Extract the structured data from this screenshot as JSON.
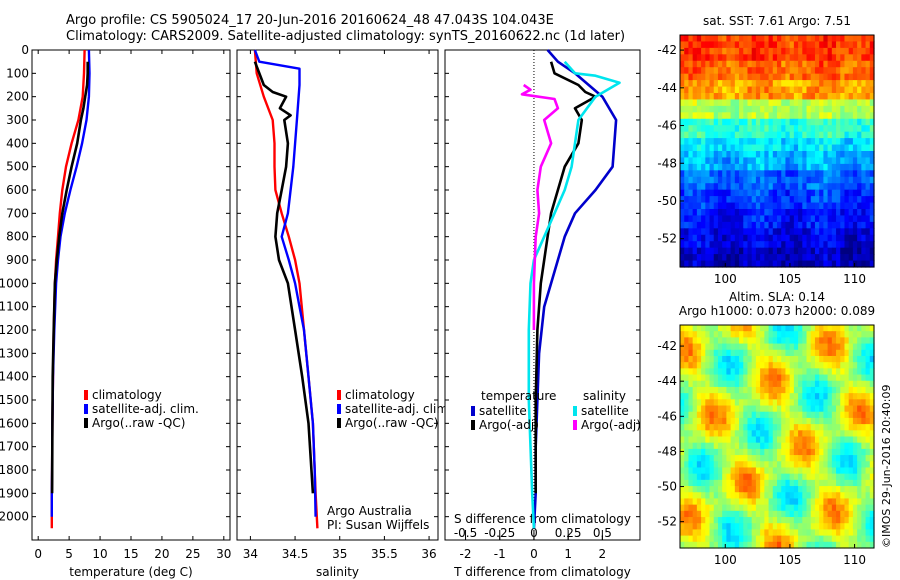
{
  "header": {
    "line1": "Argo profile: CS 5905024_17 20-Jun-2016 20160624_48 47.043S 104.043E",
    "line2": "Climatology: CARS2009. Satellite-adjusted climatology: synTS_20160622.nc (1d later)"
  },
  "side_stamp": "©IMOS 29-Jun-2016 20:40:09",
  "chart_data": [
    {
      "id": "temperature",
      "type": "line",
      "xlabel": "temperature (deg C)",
      "ylabel": "",
      "xlim": [
        -1,
        31
      ],
      "ylim": [
        2100,
        0
      ],
      "xticks": [
        0,
        5,
        10,
        15,
        20,
        25,
        30
      ],
      "yticks": [
        0,
        100,
        200,
        300,
        400,
        500,
        600,
        700,
        800,
        900,
        1000,
        1100,
        1200,
        1300,
        1400,
        1500,
        1600,
        1700,
        1800,
        1900,
        2000
      ],
      "legend": [
        "climatology",
        "satellite-adj. clim.",
        "Argo(..raw -QC)"
      ],
      "series": [
        {
          "name": "climatology",
          "color": "#ff0000",
          "x": [
            7.5,
            7.4,
            7.2,
            6.5,
            5.4,
            4.5,
            3.9,
            3.5,
            3.2,
            2.9,
            2.7,
            2.5,
            2.4,
            2.3,
            2.25,
            2.2,
            2.2,
            2.2
          ],
          "y": [
            0,
            100,
            200,
            300,
            400,
            500,
            600,
            700,
            800,
            900,
            1000,
            1200,
            1400,
            1600,
            1800,
            1900,
            2000,
            2050
          ]
        },
        {
          "name": "satellite-adj. clim.",
          "color": "#0000ff",
          "x": [
            8.2,
            8.3,
            8.2,
            7.8,
            7.1,
            6.2,
            5.2,
            4.3,
            3.6,
            3.2,
            2.9,
            2.6,
            2.4,
            2.3,
            2.25,
            2.2,
            2.2
          ],
          "y": [
            0,
            100,
            200,
            300,
            400,
            500,
            600,
            700,
            800,
            900,
            1000,
            1200,
            1400,
            1600,
            1800,
            1900,
            2000
          ]
        },
        {
          "name": "Argo(..raw -QC)",
          "color": "#000000",
          "x": [
            8.0,
            8.0,
            7.9,
            7.6,
            7.3,
            6.9,
            6.3,
            5.4,
            4.6,
            3.9,
            3.4,
            3.0,
            2.7,
            2.5,
            2.35,
            2.3,
            2.25
          ],
          "y": [
            50,
            100,
            150,
            200,
            250,
            300,
            400,
            500,
            600,
            700,
            800,
            900,
            1000,
            1200,
            1400,
            1600,
            1900
          ]
        }
      ]
    },
    {
      "id": "salinity",
      "type": "line",
      "xlabel": "salinity",
      "ylabel": "",
      "xlim": [
        33.85,
        36.1
      ],
      "ylim": [
        2100,
        0
      ],
      "xticks": [
        34,
        34.5,
        35,
        35.5,
        36
      ],
      "legend": [
        "climatology",
        "satellite-adj. clim.",
        "Argo(..raw -QC)"
      ],
      "annotation": [
        "Argo Australia",
        "PI: Susan Wijffels"
      ],
      "series": [
        {
          "name": "climatology",
          "color": "#ff0000",
          "x": [
            34.05,
            34.07,
            34.15,
            34.25,
            34.27,
            34.27,
            34.28,
            34.35,
            34.43,
            34.5,
            34.55,
            34.6,
            34.65,
            34.7,
            34.72,
            34.73,
            34.75
          ],
          "y": [
            0,
            100,
            200,
            300,
            400,
            500,
            600,
            700,
            800,
            900,
            1000,
            1200,
            1400,
            1600,
            1800,
            1900,
            2050
          ]
        },
        {
          "name": "satellite-adj. clim.",
          "color": "#0000ff",
          "x": [
            34.05,
            34.1,
            34.55,
            34.55,
            34.52,
            34.48,
            34.42,
            34.35,
            34.43,
            34.5,
            34.55,
            34.6,
            34.65,
            34.7,
            34.72,
            34.73
          ],
          "y": [
            0,
            50,
            80,
            150,
            300,
            500,
            700,
            800,
            900,
            1000,
            1100,
            1200,
            1400,
            1600,
            1800,
            2000
          ]
        },
        {
          "name": "Argo(..raw -QC)",
          "color": "#000000",
          "x": [
            34.05,
            34.15,
            34.25,
            34.4,
            34.33,
            34.45,
            34.38,
            34.42,
            34.4,
            34.35,
            34.3,
            34.28,
            34.32,
            34.42,
            34.5,
            34.58,
            34.65,
            34.7
          ],
          "y": [
            50,
            150,
            180,
            200,
            250,
            280,
            300,
            400,
            500,
            600,
            700,
            800,
            900,
            1000,
            1200,
            1400,
            1600,
            1900
          ]
        }
      ]
    },
    {
      "id": "difference",
      "type": "line",
      "xlabel": "T difference from climatology",
      "x2label": "S difference from climatology",
      "ylabel": "",
      "xlim": [
        -2.6,
        3.1
      ],
      "ylim": [
        2100,
        0
      ],
      "xticks": [
        -2,
        -1,
        0,
        1,
        2
      ],
      "x2ticks": [
        -0.5,
        -0.25,
        0,
        0.25,
        0.5
      ],
      "legend_temperature": {
        "title": "temperature",
        "items": [
          "satellite",
          "Argo(-adj)"
        ]
      },
      "legend_salinity": {
        "title": "salinity",
        "items": [
          "satellite",
          "Argo(-adj)"
        ]
      },
      "series": [
        {
          "name": "temperature satellite",
          "color": "#0000cc",
          "x": [
            0.4,
            0.7,
            1.2,
            1.6,
            2.0,
            2.4,
            2.3,
            1.8,
            1.2,
            0.9,
            0.7,
            0.5,
            0.3,
            0.15,
            0.1,
            0.05,
            0.05,
            0.0
          ],
          "y": [
            0,
            50,
            100,
            150,
            200,
            300,
            500,
            600,
            700,
            800,
            900,
            1000,
            1100,
            1300,
            1500,
            1700,
            1900,
            2050
          ]
        },
        {
          "name": "temperature Argo(-adj)",
          "color": "#000000",
          "x": [
            0.5,
            0.6,
            1.3,
            1.5,
            1.8,
            1.2,
            1.4,
            1.3,
            0.9,
            0.7,
            0.5,
            0.4,
            0.3,
            0.2,
            0.1,
            0.05,
            0.05
          ],
          "y": [
            50,
            100,
            150,
            180,
            200,
            250,
            300,
            400,
            500,
            600,
            700,
            800,
            900,
            1000,
            1200,
            1500,
            1900
          ]
        },
        {
          "name": "salinity satellite",
          "color": "#00e5ee",
          "x": [
            0.9,
            1.2,
            1.8,
            2.5,
            1.8,
            1.3,
            1.1,
            0.9,
            0.6,
            0.3,
            0.0,
            -0.1,
            -0.15,
            -0.15,
            -0.1,
            -0.05,
            0.0
          ],
          "y": [
            50,
            100,
            110,
            140,
            200,
            300,
            500,
            600,
            700,
            800,
            900,
            1000,
            1200,
            1500,
            1700,
            1900,
            2050
          ]
        },
        {
          "name": "salinity Argo(-adj)",
          "color": "#ff00ff",
          "x": [
            -0.3,
            -0.1,
            -0.35,
            0.6,
            0.7,
            0.3,
            0.5,
            0.2,
            0.1,
            0.15,
            0.05,
            0.0,
            0.0
          ],
          "y": [
            150,
            170,
            190,
            210,
            250,
            300,
            400,
            500,
            600,
            700,
            800,
            1000,
            1200
          ]
        }
      ]
    },
    {
      "id": "sst_map",
      "type": "heatmap",
      "title": "sat. SST: 7.61 Argo: 7.51",
      "xticks": [
        100,
        105,
        110
      ],
      "yticks": [
        -42,
        -44,
        -46,
        -48,
        -50,
        -52
      ],
      "xlim": [
        96.5,
        111.5
      ],
      "ylim": [
        -53.5,
        -41.2
      ],
      "colormap": "jet",
      "bands": [
        {
          "lat": -42,
          "level": 0.82
        },
        {
          "lat": -43,
          "level": 0.78
        },
        {
          "lat": -44,
          "level": 0.72
        },
        {
          "lat": -45,
          "level": 0.55
        },
        {
          "lat": -46,
          "level": 0.42
        },
        {
          "lat": -47,
          "level": 0.35
        },
        {
          "lat": -48,
          "level": 0.3
        },
        {
          "lat": -49,
          "level": 0.22
        },
        {
          "lat": -50,
          "level": 0.18
        },
        {
          "lat": -51,
          "level": 0.14
        },
        {
          "lat": -52,
          "level": 0.1
        },
        {
          "lat": -53,
          "level": 0.06
        }
      ]
    },
    {
      "id": "sla_map",
      "type": "heatmap",
      "title": "Altim. SLA: 0.14",
      "subtitle": "Argo h1000: 0.073 h2000: 0.089",
      "xticks": [
        100,
        105,
        110
      ],
      "yticks": [
        -42,
        -44,
        -46,
        -48,
        -50,
        -52
      ],
      "xlim": [
        96.5,
        111.5
      ],
      "ylim": [
        -53.5,
        -40.8
      ],
      "colormap": "jet",
      "base_level": 0.55
    }
  ]
}
